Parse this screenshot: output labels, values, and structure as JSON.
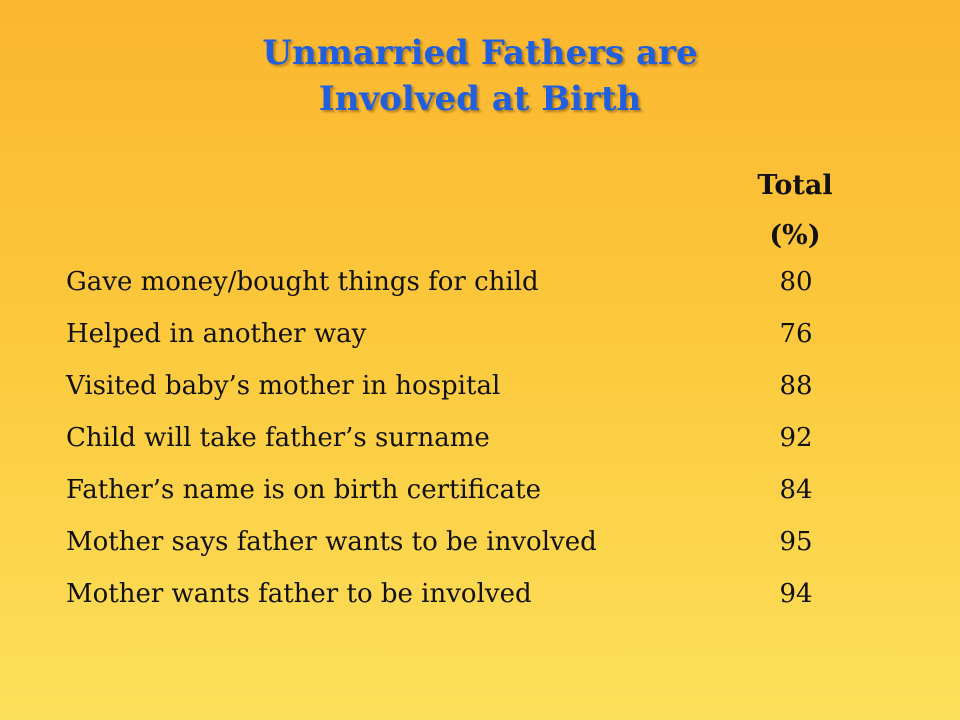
{
  "title": {
    "line1": "Unmarried Fathers are",
    "line2": "Involved at Birth"
  },
  "table": {
    "column_header_line1": "Total",
    "column_header_line2": "(%)",
    "rows": [
      {
        "label": "Gave money/bought things for child",
        "value": "80"
      },
      {
        "label": "Helped in another way",
        "value": "76"
      },
      {
        "label": "Visited baby’s mother in hospital",
        "value": "88"
      },
      {
        "label": "Child will take father’s surname",
        "value": "92"
      },
      {
        "label": "Father’s name is on birth certificate",
        "value": "84"
      },
      {
        "label": "Mother says father wants to be involved",
        "value": "95"
      },
      {
        "label": "Mother wants father to be involved",
        "value": "94"
      }
    ]
  },
  "colors": {
    "title": "#1f5fe0",
    "background_top": "#fbb62f",
    "background_bottom": "#fde05a",
    "text": "#111111"
  }
}
